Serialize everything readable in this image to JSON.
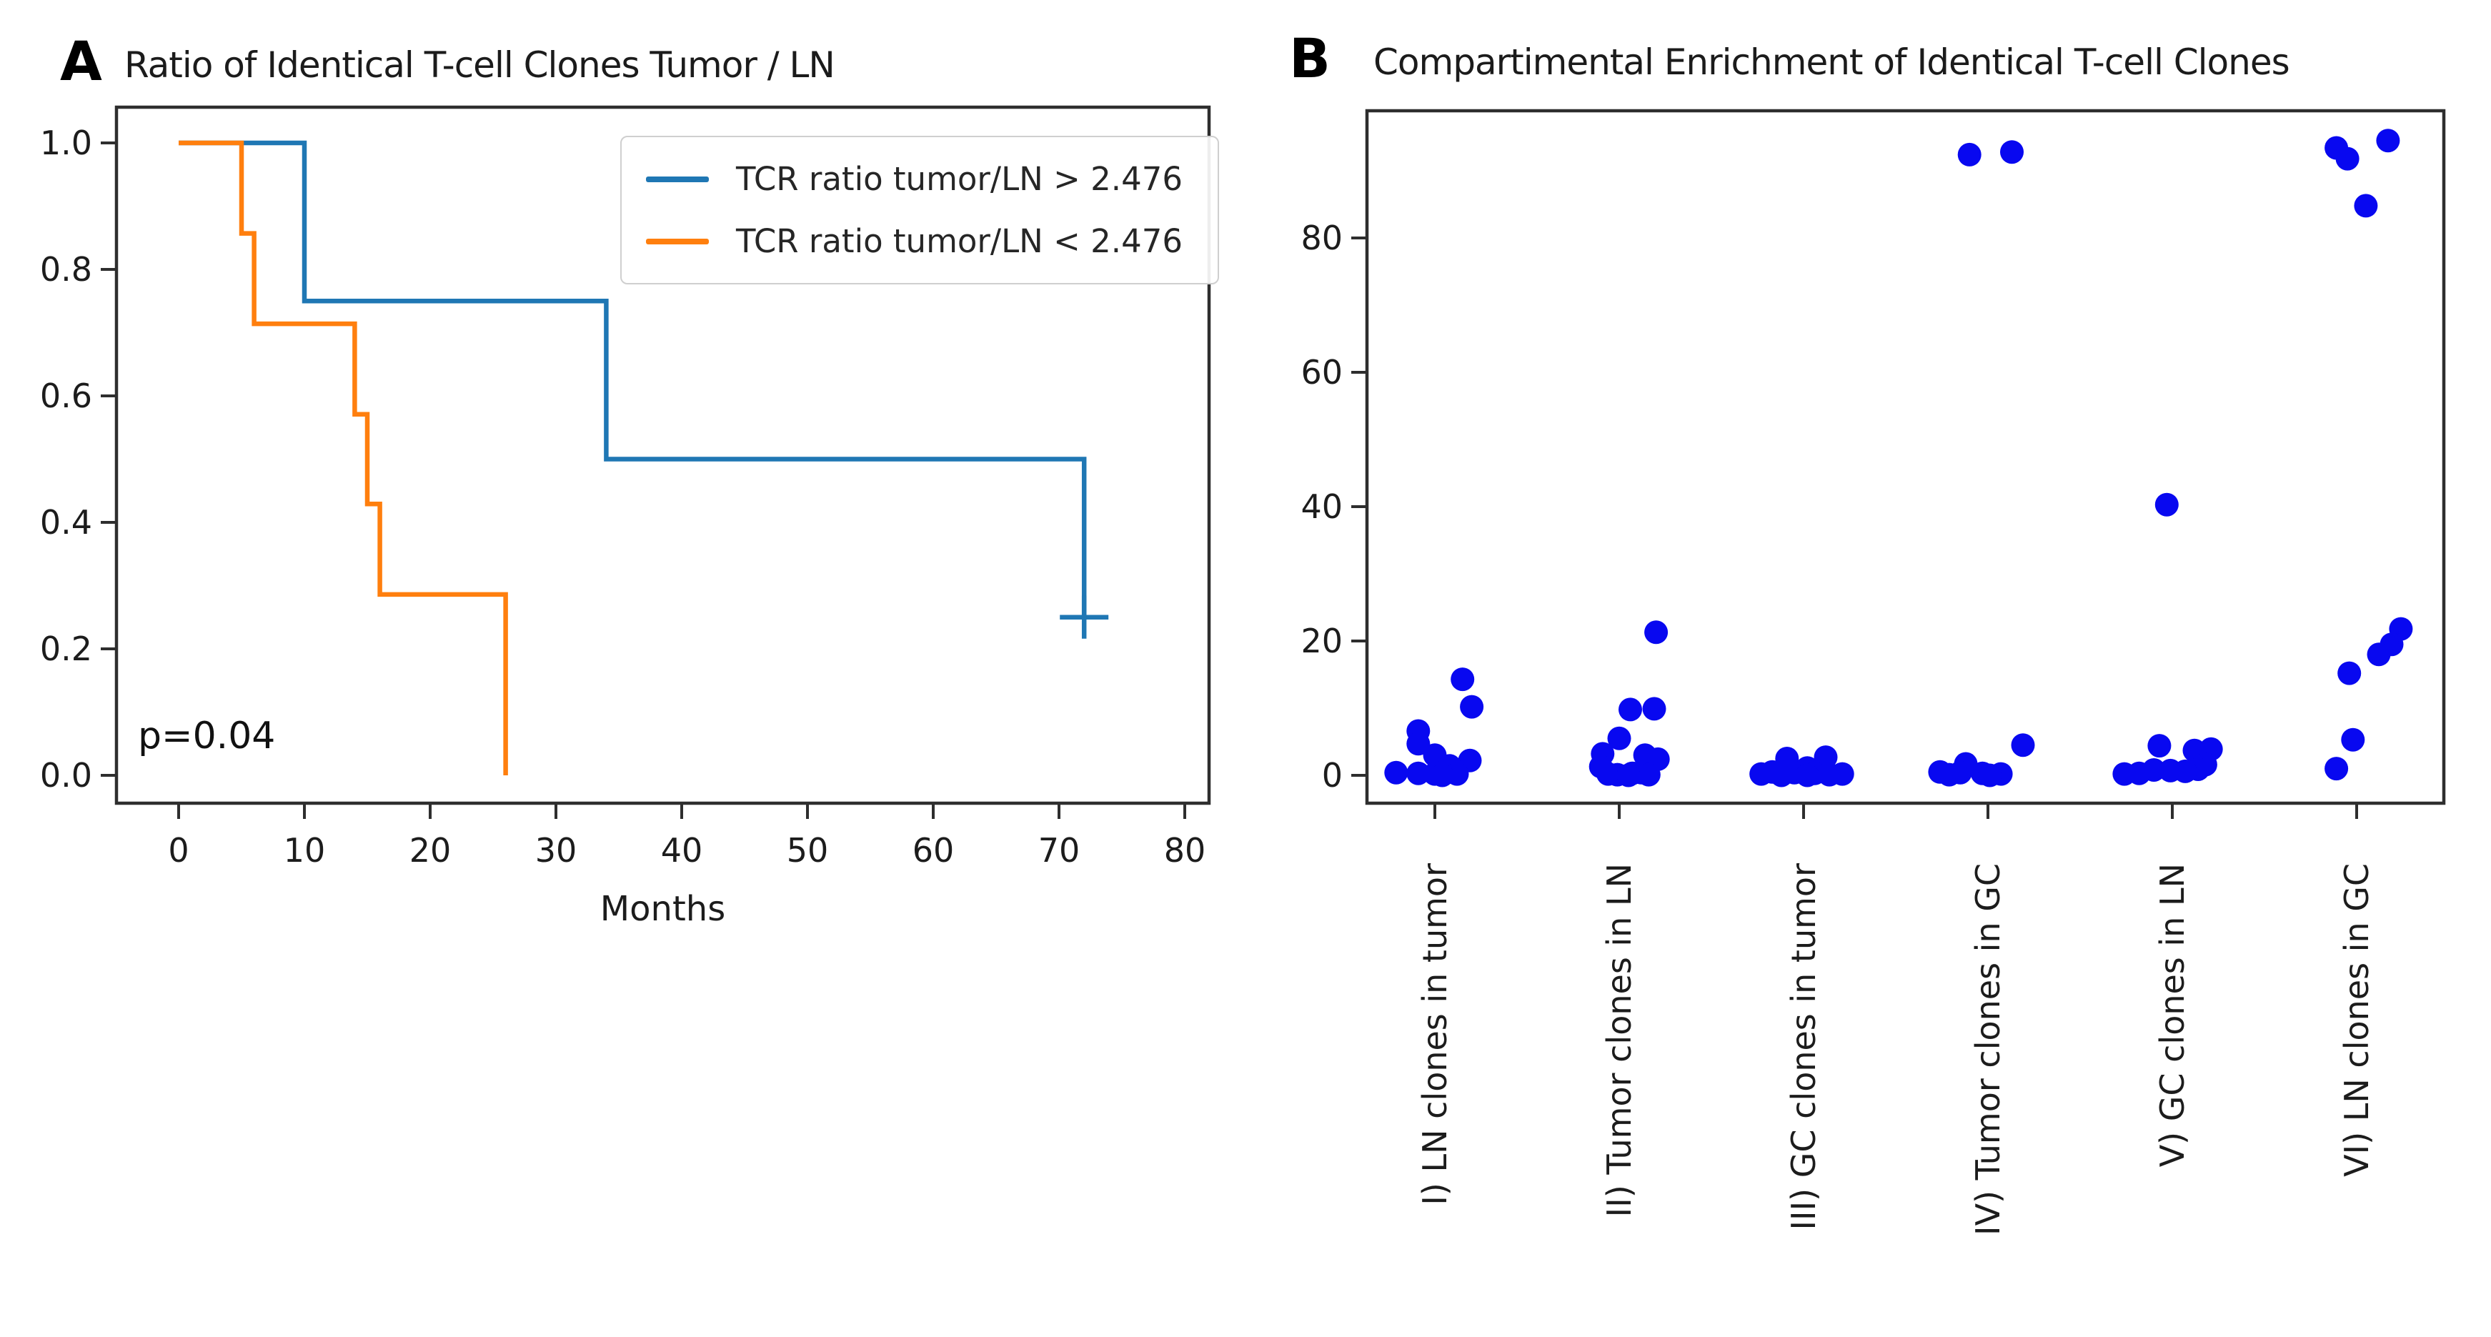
{
  "panels": [
    {
      "letter": "A",
      "title": "Ratio of Identical T-cell Clones Tumor / LN"
    },
    {
      "letter": "B",
      "title": "Compartimental Enrichment of Identical T-cell Clones"
    }
  ],
  "annotation_a": "p=0.04",
  "chart_data": [
    {
      "type": "line",
      "kind": "kaplan-meier-step",
      "title": "Ratio of Identical T-cell Clones Tumor / LN",
      "xlabel": "Months",
      "ylabel": "",
      "xlim": [
        -5,
        82
      ],
      "ylim": [
        -0.045,
        1.057
      ],
      "xticks": [
        "0",
        "10",
        "20",
        "30",
        "40",
        "50",
        "60",
        "70",
        "80"
      ],
      "xtick_values": [
        0,
        10,
        20,
        30,
        40,
        50,
        60,
        70,
        80
      ],
      "yticks": [
        "0.0",
        "0.2",
        "0.4",
        "0.6",
        "0.8",
        "1.0"
      ],
      "ytick_values": [
        0.0,
        0.2,
        0.4,
        0.6,
        0.8,
        1.0
      ],
      "grid": false,
      "legend_position": "upper right",
      "annotation": "p=0.04",
      "axis_color": "#2e2e2e",
      "series": [
        {
          "name": "TCR ratio tumor/LN > 2.476",
          "color": "#1f77b4",
          "steps": [
            [
              0,
              1.0
            ],
            [
              10,
              1.0
            ],
            [
              10,
              0.75
            ],
            [
              34,
              0.75
            ],
            [
              34,
              0.5
            ],
            [
              72,
              0.5
            ],
            [
              72,
              0.25
            ]
          ],
          "censored": [
            [
              72,
              0.25
            ]
          ]
        },
        {
          "name": "TCR ratio tumor/LN < 2.476",
          "color": "#ff7f0e",
          "steps": [
            [
              0,
              1.0
            ],
            [
              5,
              1.0
            ],
            [
              5,
              0.857
            ],
            [
              6,
              0.857
            ],
            [
              6,
              0.714
            ],
            [
              14,
              0.714
            ],
            [
              14,
              0.571
            ],
            [
              15,
              0.571
            ],
            [
              15,
              0.429
            ],
            [
              16,
              0.429
            ],
            [
              16,
              0.286
            ],
            [
              26,
              0.286
            ],
            [
              26,
              0.0
            ]
          ],
          "censored": []
        }
      ]
    },
    {
      "type": "scatter",
      "kind": "strip-plot",
      "title": "Compartimental Enrichment of Identical T-cell Clones",
      "xlabel": "",
      "ylabel": "",
      "ylim": [
        -4.7,
        99.5
      ],
      "yticks": [
        "0",
        "20",
        "40",
        "60",
        "80"
      ],
      "ytick_values": [
        0,
        20,
        40,
        60,
        80
      ],
      "grid": false,
      "point_color": "#0808f0",
      "axis_color": "#2e2e2e",
      "categories": [
        "I) LN clones in tumor",
        "II) Tumor clones in LN",
        "III) GC clones in tumor",
        "IV) Tumor clones in GC",
        "V) GC clones in LN",
        "VI) LN clones in GC"
      ],
      "groups": [
        {
          "label": "I) LN clones in tumor",
          "points_vj": [
            [
              14.3,
              0.15
            ],
            [
              10.2,
              0.2
            ],
            [
              6.6,
              -0.09
            ],
            [
              4.7,
              -0.09
            ],
            [
              3.0,
              0.0
            ],
            [
              2.2,
              0.19
            ],
            [
              1.4,
              0.08
            ],
            [
              0.4,
              -0.21
            ],
            [
              0.3,
              -0.09
            ],
            [
              0.2,
              0.0
            ],
            [
              0.2,
              0.12
            ],
            [
              0.0,
              0.04
            ]
          ]
        },
        {
          "label": "II) Tumor clones in LN",
          "points_vj": [
            [
              21.3,
              0.2
            ],
            [
              9.9,
              0.19
            ],
            [
              9.8,
              0.06
            ],
            [
              5.5,
              0.0
            ],
            [
              3.2,
              -0.09
            ],
            [
              3.0,
              0.14
            ],
            [
              2.4,
              0.21
            ],
            [
              1.3,
              -0.1
            ],
            [
              0.4,
              0.12
            ],
            [
              0.3,
              0.07
            ],
            [
              0.2,
              -0.06
            ],
            [
              0.1,
              0.16
            ],
            [
              0.1,
              -0.01
            ],
            [
              0.0,
              0.05
            ]
          ]
        },
        {
          "label": "III) GC clones in tumor",
          "points_vj": [
            [
              2.5,
              -0.09
            ],
            [
              2.7,
              0.12
            ],
            [
              1.1,
              0.02
            ],
            [
              0.5,
              -0.17
            ],
            [
              0.4,
              -0.05
            ],
            [
              0.3,
              0.06
            ],
            [
              0.2,
              0.21
            ],
            [
              0.2,
              -0.23
            ],
            [
              0.1,
              0.14
            ],
            [
              0.0,
              -0.12
            ],
            [
              0.0,
              0.02
            ]
          ]
        },
        {
          "label": "IV) Tumor clones in GC",
          "points_vj": [
            [
              92.4,
              -0.1
            ],
            [
              92.8,
              0.13
            ],
            [
              4.5,
              0.19
            ],
            [
              1.7,
              -0.12
            ],
            [
              0.5,
              -0.26
            ],
            [
              0.4,
              -0.15
            ],
            [
              0.3,
              -0.03
            ],
            [
              0.2,
              0.07
            ],
            [
              0.1,
              -0.21
            ],
            [
              0.0,
              0.01
            ]
          ]
        },
        {
          "label": "V) GC clones in LN",
          "points_vj": [
            [
              40.3,
              -0.03
            ],
            [
              4.4,
              -0.07
            ],
            [
              3.9,
              0.21
            ],
            [
              3.7,
              0.12
            ],
            [
              1.6,
              0.18
            ],
            [
              0.9,
              0.14
            ],
            [
              0.8,
              -0.1
            ],
            [
              0.7,
              -0.01
            ],
            [
              0.6,
              0.07
            ],
            [
              0.3,
              -0.18
            ],
            [
              0.2,
              -0.26
            ]
          ]
        },
        {
          "label": "VI) LN clones in GC",
          "points_vj": [
            [
              94.5,
              0.17
            ],
            [
              93.4,
              -0.11
            ],
            [
              91.8,
              -0.05
            ],
            [
              84.8,
              0.05
            ],
            [
              21.8,
              0.24
            ],
            [
              19.5,
              0.19
            ],
            [
              18.0,
              0.12
            ],
            [
              15.2,
              -0.04
            ],
            [
              5.3,
              -0.02
            ],
            [
              1.0,
              -0.11
            ]
          ]
        }
      ]
    }
  ]
}
